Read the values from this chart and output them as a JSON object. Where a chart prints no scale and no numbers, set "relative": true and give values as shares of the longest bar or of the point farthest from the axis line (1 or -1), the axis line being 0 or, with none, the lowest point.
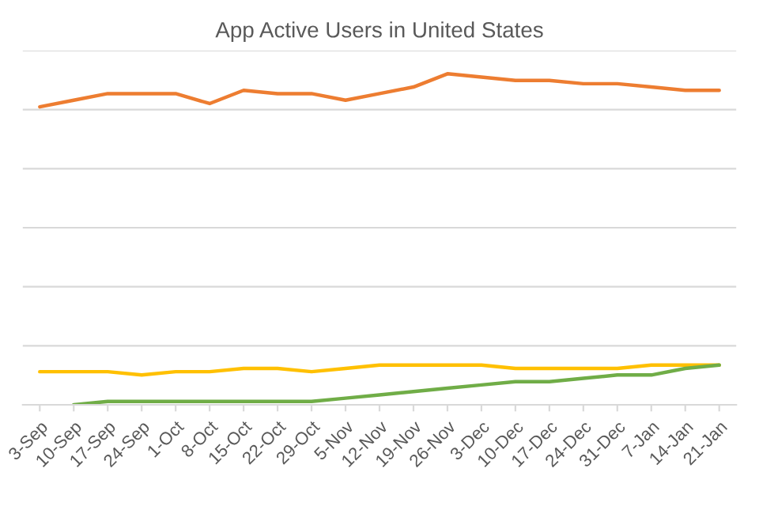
{
  "chart_data": {
    "type": "line",
    "title": "App Active Users in United States",
    "relative": true,
    "grid": "y",
    "marker": "none",
    "line_style": "solid",
    "categories": [
      "3-Sep",
      "10-Sep",
      "17-Sep",
      "24-Sep",
      "1-Oct",
      "8-Oct",
      "15-Oct",
      "22-Oct",
      "29-Oct",
      "5-Nov",
      "12-Nov",
      "19-Nov",
      "26-Nov",
      "3-Dec",
      "10-Dec",
      "17-Dec",
      "24-Dec",
      "31-Dec",
      "7-Jan",
      "14-Jan",
      "21-Jan"
    ],
    "series": [
      {
        "color": "#ed7d31",
        "values": [
          0.9,
          0.92,
          0.94,
          0.94,
          0.94,
          0.91,
          0.95,
          0.94,
          0.94,
          0.92,
          0.94,
          0.96,
          1.0,
          0.99,
          0.98,
          0.98,
          0.97,
          0.97,
          0.96,
          0.95,
          0.95
        ]
      },
      {
        "color": "#ffc000",
        "values": [
          0.1,
          0.1,
          0.1,
          0.09,
          0.1,
          0.1,
          0.11,
          0.11,
          0.1,
          0.11,
          0.12,
          0.12,
          0.12,
          0.12,
          0.11,
          0.11,
          0.11,
          0.11,
          0.12,
          0.12,
          0.12
        ]
      },
      {
        "color": "#70ad47",
        "values": [
          null,
          0.0,
          0.01,
          0.01,
          0.01,
          0.01,
          0.01,
          0.01,
          0.01,
          0.02,
          0.03,
          0.04,
          0.05,
          0.06,
          0.07,
          0.07,
          0.08,
          0.09,
          0.09,
          0.11,
          0.12
        ]
      }
    ]
  }
}
